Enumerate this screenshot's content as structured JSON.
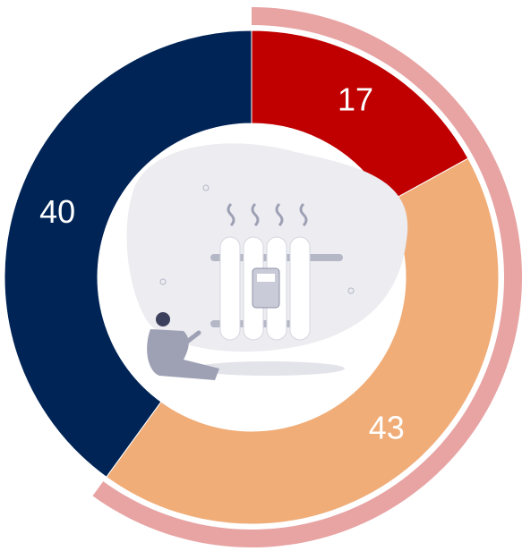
{
  "chart_data": {
    "type": "donut",
    "values": [
      17,
      43,
      40
    ],
    "colors": [
      "#c00000",
      "#f0ad78",
      "#002456"
    ],
    "highlight": [
      true,
      true,
      false
    ],
    "highlight_color": "#e8a3a3",
    "label_color": "#ffffff"
  }
}
